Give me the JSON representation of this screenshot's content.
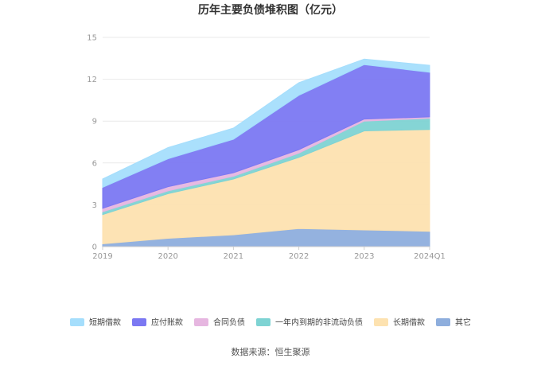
{
  "chart_data": {
    "type": "area",
    "stacked": true,
    "title": "历年主要负债堆积图（亿元）",
    "categories": [
      "2019",
      "2020",
      "2021",
      "2022",
      "2023",
      "2024Q1"
    ],
    "ylim": [
      0,
      15
    ],
    "yticks": [
      "0",
      "3",
      "6",
      "9",
      "12",
      "15"
    ],
    "grid": true,
    "legend_position": "bottom",
    "series": [
      {
        "name": "其它",
        "color": "#8eaedd",
        "values": [
          0.2,
          0.6,
          0.85,
          1.3,
          1.2,
          1.1
        ]
      },
      {
        "name": "长期借款",
        "color": "#fde2b0",
        "values": [
          2.1,
          3.2,
          4.0,
          5.1,
          7.1,
          7.3
        ]
      },
      {
        "name": "一年内到期的非流动负债",
        "color": "#7ed3d3",
        "values": [
          0.2,
          0.2,
          0.2,
          0.3,
          0.7,
          0.8
        ]
      },
      {
        "name": "合同负债",
        "color": "#e6b6e0",
        "values": [
          0.25,
          0.3,
          0.25,
          0.25,
          0.15,
          0.1
        ]
      },
      {
        "name": "应付账款",
        "color": "#7b78f2",
        "values": [
          1.5,
          2.0,
          2.4,
          3.9,
          3.9,
          3.2
        ]
      },
      {
        "name": "短期借款",
        "color": "#a5defc",
        "values": [
          0.6,
          0.8,
          0.8,
          0.9,
          0.4,
          0.5
        ]
      }
    ],
    "legend_order": [
      "短期借款",
      "应付账款",
      "合同负债",
      "一年内到期的非流动负债",
      "长期借款",
      "其它"
    ]
  },
  "source_text": "数据来源：恒生聚源"
}
